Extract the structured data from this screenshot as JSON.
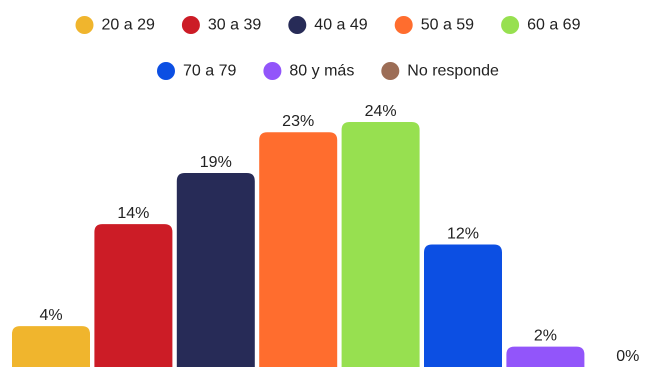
{
  "chart_data": {
    "type": "bar",
    "categories": [
      "20 a 29",
      "30 a 39",
      "40 a 49",
      "50 a 59",
      "60 a 69",
      "70 a 79",
      "80 y más",
      "No responde"
    ],
    "values": [
      4,
      14,
      19,
      23,
      24,
      12,
      2,
      0
    ],
    "unit": "%",
    "colors": [
      "#f0b52d",
      "#cc1c26",
      "#272b57",
      "#ff6d2e",
      "#97e050",
      "#0c4fe3",
      "#9255fa",
      "#9c6d56"
    ],
    "legend_position": "top",
    "grid": false,
    "axes_visible": false,
    "ylim": [
      0,
      24
    ]
  }
}
